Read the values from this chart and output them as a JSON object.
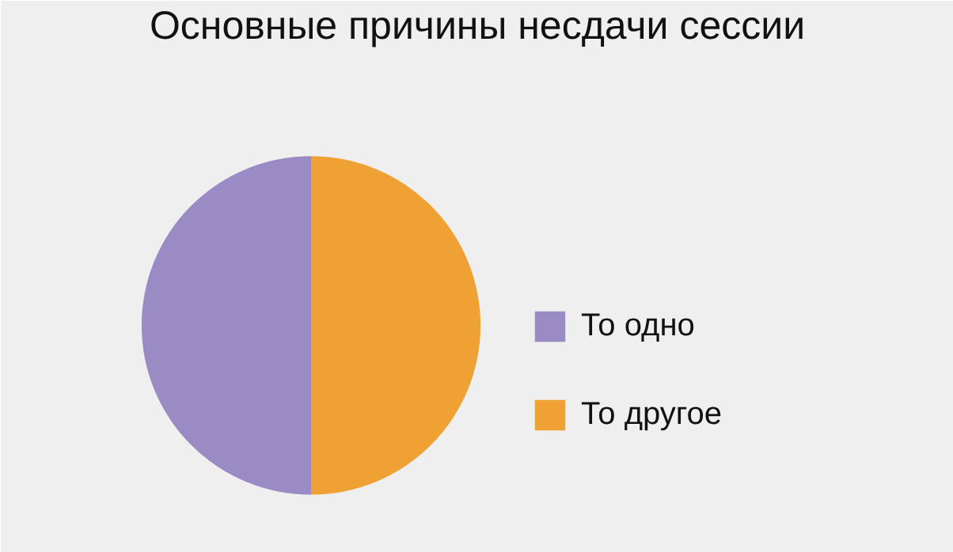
{
  "chart_data": {
    "type": "pie",
    "title": "Основные причины несдачи сессии",
    "categories": [
      "То одно",
      "То другое"
    ],
    "values": [
      50,
      50
    ],
    "colors": [
      "#9a8bc4",
      "#f0a133"
    ],
    "legend": "right"
  }
}
